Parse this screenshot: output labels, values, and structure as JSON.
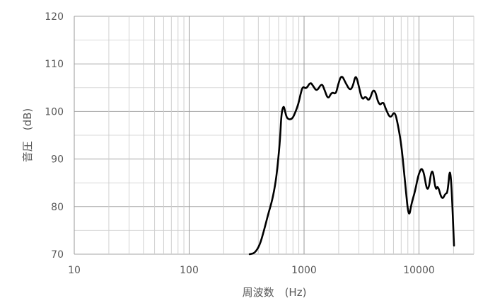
{
  "chart_data": {
    "type": "line",
    "title": "",
    "xlabel": "周波数　(Hz)",
    "ylabel": "音圧　(dB)",
    "xscale": "log",
    "xlim": [
      10,
      30000
    ],
    "ylim": [
      70,
      120
    ],
    "xticks": [
      10,
      100,
      1000,
      10000
    ],
    "xtick_labels": [
      "10",
      "100",
      "1000",
      "10000"
    ],
    "yticks": [
      70,
      80,
      90,
      100,
      110,
      120
    ],
    "ytick_labels": [
      "70",
      "80",
      "90",
      "100",
      "110",
      "120"
    ],
    "grid": true,
    "legend": "none",
    "line_color": "#000000",
    "series": [
      {
        "x": [
          336,
          371,
          410,
          446,
          492,
          528,
          567,
          592,
          618,
          635,
          663,
          682,
          711,
          786,
          843,
          893,
          931,
          973,
          1043,
          1135,
          1202,
          1291,
          1426,
          1508,
          1619,
          1738,
          1892,
          1973,
          2118,
          2307,
          2512,
          2661,
          2813,
          2978,
          3199,
          3428,
          3681,
          4064,
          4487,
          4887,
          5105,
          5636,
          6138,
          6577,
          7063,
          7586,
          8147,
          8610,
          9247,
          9931,
          10814,
          11940,
          13002,
          13964,
          14560,
          15849,
          17022,
          17742,
          18793,
          20184
        ],
        "y": [
          69.8,
          70.2,
          71.8,
          74.8,
          78.8,
          81.3,
          85.2,
          89.2,
          94.1,
          99.6,
          101.3,
          100.1,
          98.4,
          98.3,
          99.9,
          101.6,
          103.6,
          105.3,
          104.7,
          106.2,
          105.3,
          104.2,
          106.0,
          104.5,
          102.5,
          104.1,
          103.6,
          105.6,
          107.8,
          105.9,
          104.4,
          105.3,
          107.8,
          105.6,
          102.3,
          103.3,
          102.0,
          105.3,
          101.1,
          102.1,
          100.7,
          98.4,
          100.2,
          97.1,
          92.6,
          84.7,
          77.4,
          80.7,
          83.2,
          87.0,
          88.5,
          82.1,
          88.9,
          83.2,
          84.6,
          81.3,
          82.8,
          82.8,
          89.6,
          71.8
        ]
      }
    ]
  }
}
